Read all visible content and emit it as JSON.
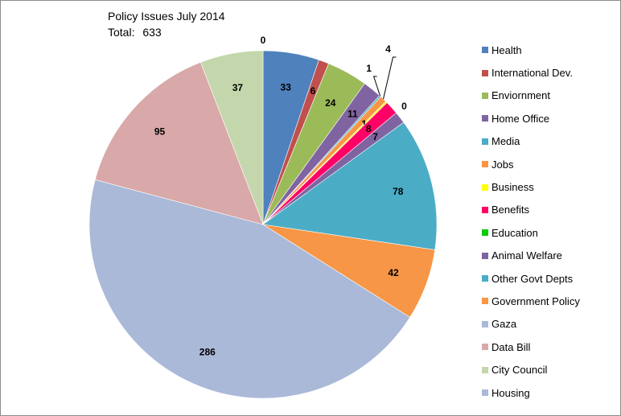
{
  "chart_data": {
    "type": "pie",
    "title": "Policy Issues July 2014",
    "total_label": "Total:",
    "total_value": "633",
    "legend_position": "right",
    "slices": [
      {
        "name": "Health",
        "value": 33,
        "label": "33",
        "color": "#4f81bd"
      },
      {
        "name": "International Dev.",
        "value": 6,
        "label": "6",
        "color": "#c0504d"
      },
      {
        "name": "Enviornment",
        "value": 24,
        "label": "24",
        "color": "#9bbb59"
      },
      {
        "name": "Home Office",
        "value": 11,
        "label": "11",
        "color": "#8064a2"
      },
      {
        "name": "Media",
        "value": 1,
        "label": "1",
        "color": "#4bacc6"
      },
      {
        "name": "Jobs",
        "value": 4,
        "label": "4",
        "color": "#f79646"
      },
      {
        "name": "Business",
        "value": 1,
        "label": "1",
        "color": "#ffff00"
      },
      {
        "name": "Benefits",
        "value": 8,
        "label": "8",
        "color": "#ff0066"
      },
      {
        "name": "Education",
        "value": 0,
        "label": "0",
        "color": "#00cc00"
      },
      {
        "name": "Animal Welfare",
        "value": 7,
        "label": "7",
        "color": "#8064a2"
      },
      {
        "name": "Other Govt Depts",
        "value": 78,
        "label": "78",
        "color": "#4bacc6"
      },
      {
        "name": "Government Policy",
        "value": 42,
        "label": "42",
        "color": "#f79646"
      },
      {
        "name": "Gaza",
        "value": 286,
        "label": "286",
        "color": "#aab9d8"
      },
      {
        "name": "Data Bill",
        "value": 95,
        "label": "95",
        "color": "#d9a8a8"
      },
      {
        "name": "City Council",
        "value": 37,
        "label": "37",
        "color": "#c4d7ac"
      },
      {
        "name": "Housing",
        "value": 0,
        "label": "0",
        "color": "#aab9d8"
      }
    ]
  }
}
